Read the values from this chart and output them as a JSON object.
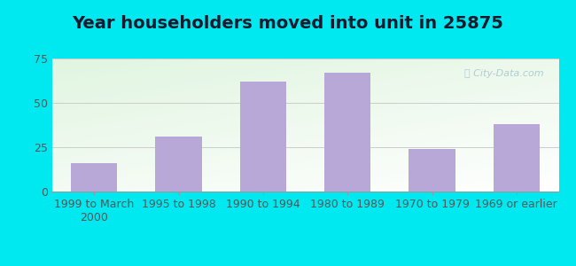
{
  "title": "Year householders moved into unit in 25875",
  "categories": [
    "1999 to March\n2000",
    "1995 to 1998",
    "1990 to 1994",
    "1980 to 1989",
    "1970 to 1979",
    "1969 or earlier"
  ],
  "values": [
    16,
    31,
    62,
    67,
    24,
    38
  ],
  "bar_color": "#b8a8d8",
  "ylim": [
    0,
    75
  ],
  "yticks": [
    0,
    25,
    50,
    75
  ],
  "background_outer": "#00e8f0",
  "background_inner_top_left": "#d8eed8",
  "background_inner_top_right": "#e8f4f8",
  "background_inner_bottom": "#d0ecd0",
  "grid_color": "#cccccc",
  "title_fontsize": 14,
  "tick_fontsize": 9,
  "watermark_color": "#aac8d0"
}
